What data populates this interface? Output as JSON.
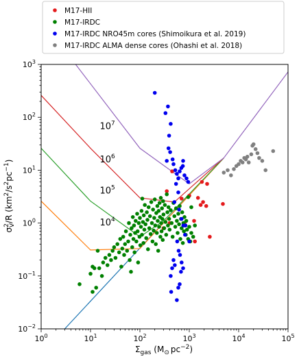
{
  "chart_data": {
    "type": "scatter",
    "xscale": "log",
    "yscale": "log",
    "xlim": [
      1,
      100000
    ],
    "ylim": [
      0.01,
      1000
    ],
    "xlabel": {
      "main": "Σ",
      "sub": "gas",
      "rest": " (M",
      "sun_sub": "⊙",
      "unit": "pc",
      "sup": "−2",
      "close": ")"
    },
    "ylabel": {
      "pre": "σ",
      "sub": "V",
      "sup1": "2",
      "mid": "/R (km",
      "sup2": "2",
      "mid2": "/s",
      "sup3": "2",
      "mid3": "pc",
      "sup4": "−1",
      "close": ")"
    },
    "x_ticks": [
      {
        "value": 1,
        "base": "10",
        "exp": "0"
      },
      {
        "value": 10,
        "base": "10",
        "exp": "1"
      },
      {
        "value": 100,
        "base": "10",
        "exp": "2"
      },
      {
        "value": 1000,
        "base": "10",
        "exp": "3"
      },
      {
        "value": 10000,
        "base": "10",
        "exp": "4"
      },
      {
        "value": 100000,
        "base": "10",
        "exp": "5"
      }
    ],
    "y_ticks": [
      {
        "value": 0.01,
        "base": "10",
        "exp": "−2"
      },
      {
        "value": 0.1,
        "base": "10",
        "exp": "−1"
      },
      {
        "value": 1,
        "base": "10",
        "exp": "0"
      },
      {
        "value": 10,
        "base": "10",
        "exp": "1"
      },
      {
        "value": 100,
        "base": "10",
        "exp": "2"
      },
      {
        "value": 1000,
        "base": "10",
        "exp": "3"
      }
    ],
    "legend": {
      "placement": "top",
      "entries": [
        {
          "label": "M17-HII",
          "color": "#e41a1c"
        },
        {
          "label": "M17-IRDC",
          "color": "#008000"
        },
        {
          "label": "M17-IRDC NRO45m cores (Shimoikura et al. 2019)",
          "color": "#0000ee"
        },
        {
          "label": "M17-IRDC ALMA dense cores (Ohashi et al. 2018)",
          "color": "#808080"
        }
      ]
    },
    "lines": [
      {
        "color": "#1f77b4",
        "points": [
          [
            3,
            0.01
          ],
          [
            5000,
            17
          ]
        ]
      },
      {
        "color": "#ff7f0e",
        "label": {
          "base": "10",
          "exp": "4"
        },
        "label_at": [
          22,
          0.9
        ],
        "points": [
          [
            1,
            2.6
          ],
          [
            10,
            0.31
          ],
          [
            100,
            0.33
          ],
          [
            5000,
            17
          ]
        ]
      },
      {
        "color": "#2ca02c",
        "label": {
          "base": "10",
          "exp": "5"
        },
        "label_at": [
          22,
          3.6
        ],
        "points": [
          [
            1,
            26
          ],
          [
            10,
            2.6
          ],
          [
            100,
            0.55
          ],
          [
            300,
            1.1
          ],
          [
            5000,
            17
          ]
        ]
      },
      {
        "color": "#d62728",
        "label": {
          "base": "10",
          "exp": "6"
        },
        "label_at": [
          22,
          14
        ],
        "points": [
          [
            1,
            260
          ],
          [
            10,
            26
          ],
          [
            100,
            3.0
          ],
          [
            500,
            2.5
          ],
          [
            5000,
            17
          ]
        ]
      },
      {
        "color": "#9467bd",
        "label": {
          "base": "10",
          "exp": "7"
        },
        "label_at": [
          22,
          60
        ],
        "points": [
          [
            5,
            1000
          ],
          [
            100,
            26
          ],
          [
            1000,
            5.5
          ],
          [
            5000,
            17
          ],
          [
            100000,
            720
          ]
        ]
      }
    ],
    "series": [
      {
        "name": "M17-HII",
        "color": "#e41a1c",
        "points": [
          [
            350,
            4.0
          ],
          [
            450,
            9.5
          ],
          [
            1800,
            6.0
          ],
          [
            1900,
            2.5
          ],
          [
            2300,
            5.5
          ],
          [
            1500,
            3.0
          ],
          [
            1700,
            2.2
          ],
          [
            1250,
            1.1
          ],
          [
            1300,
            0.45
          ],
          [
            800,
            1.0
          ],
          [
            2200,
            2.1
          ],
          [
            4800,
            2.3
          ],
          [
            2600,
            0.55
          ],
          [
            400,
            1.0
          ],
          [
            300,
            0.8
          ],
          [
            700,
            2.9
          ],
          [
            1000,
            3.3
          ]
        ]
      },
      {
        "name": "M17-IRDC",
        "color": "#008000",
        "points": [
          [
            6,
            0.07
          ],
          [
            10,
            0.11
          ],
          [
            11,
            0.15
          ],
          [
            12,
            0.14
          ],
          [
            11,
            0.05
          ],
          [
            13,
            0.06
          ],
          [
            15,
            0.14
          ],
          [
            14,
            0.3
          ],
          [
            17,
            0.1
          ],
          [
            18,
            0.18
          ],
          [
            20,
            0.22
          ],
          [
            22,
            0.16
          ],
          [
            24,
            0.25
          ],
          [
            26,
            0.2
          ],
          [
            28,
            0.3
          ],
          [
            30,
            0.35
          ],
          [
            32,
            0.22
          ],
          [
            35,
            0.4
          ],
          [
            38,
            0.28
          ],
          [
            40,
            0.5
          ],
          [
            42,
            0.15
          ],
          [
            44,
            0.33
          ],
          [
            46,
            0.55
          ],
          [
            48,
            0.25
          ],
          [
            50,
            0.4
          ],
          [
            52,
            0.7
          ],
          [
            55,
            0.3
          ],
          [
            58,
            0.45
          ],
          [
            60,
            1.0
          ],
          [
            62,
            0.2
          ],
          [
            64,
            0.6
          ],
          [
            66,
            0.12
          ],
          [
            68,
            0.8
          ],
          [
            70,
            0.35
          ],
          [
            72,
            1.3
          ],
          [
            74,
            0.5
          ],
          [
            76,
            0.9
          ],
          [
            78,
            0.28
          ],
          [
            80,
            0.65
          ],
          [
            82,
            1.1
          ],
          [
            85,
            0.45
          ],
          [
            88,
            1.5
          ],
          [
            90,
            0.7
          ],
          [
            92,
            0.18
          ],
          [
            95,
            1.0
          ],
          [
            98,
            0.55
          ],
          [
            100,
            1.25
          ],
          [
            102,
            0.38
          ],
          [
            105,
            0.85
          ],
          [
            108,
            1.7
          ],
          [
            110,
            0.6
          ],
          [
            112,
            2.9
          ],
          [
            115,
            1.05
          ],
          [
            118,
            0.42
          ],
          [
            120,
            1.4
          ],
          [
            123,
            0.75
          ],
          [
            126,
            2.2
          ],
          [
            130,
            0.95
          ],
          [
            134,
            0.52
          ],
          [
            138,
            1.6
          ],
          [
            142,
            1.15
          ],
          [
            146,
            0.32
          ],
          [
            150,
            2.0
          ],
          [
            155,
            0.8
          ],
          [
            160,
            1.35
          ],
          [
            165,
            0.62
          ],
          [
            170,
            2.5
          ],
          [
            175,
            1.0
          ],
          [
            180,
            0.45
          ],
          [
            185,
            1.8
          ],
          [
            190,
            0.72
          ],
          [
            195,
            1.25
          ],
          [
            200,
            2.8
          ],
          [
            205,
            0.9
          ],
          [
            210,
            0.4
          ],
          [
            215,
            1.55
          ],
          [
            220,
            0.65
          ],
          [
            225,
            2.1
          ],
          [
            230,
            1.1
          ],
          [
            235,
            0.3
          ],
          [
            240,
            1.7
          ],
          [
            245,
            0.85
          ],
          [
            250,
            2.4
          ],
          [
            255,
            1.3
          ],
          [
            260,
            0.55
          ],
          [
            265,
            3.0
          ],
          [
            270,
            1.0
          ],
          [
            275,
            0.7
          ],
          [
            280,
            1.9
          ],
          [
            285,
            1.2
          ],
          [
            290,
            0.48
          ],
          [
            295,
            2.6
          ],
          [
            300,
            1.45
          ],
          [
            310,
            0.8
          ],
          [
            320,
            2.2
          ],
          [
            330,
            1.05
          ],
          [
            340,
            0.6
          ],
          [
            350,
            3.5
          ],
          [
            360,
            1.6
          ],
          [
            370,
            0.9
          ],
          [
            380,
            2.0
          ],
          [
            390,
            1.2
          ],
          [
            400,
            0.75
          ],
          [
            420,
            1.75
          ],
          [
            440,
            1.0
          ],
          [
            460,
            0.55
          ],
          [
            480,
            2.4
          ],
          [
            500,
            1.35
          ],
          [
            520,
            0.85
          ],
          [
            540,
            1.9
          ],
          [
            560,
            1.1
          ],
          [
            580,
            0.65
          ],
          [
            600,
            1.5
          ],
          [
            620,
            0.95
          ],
          [
            640,
            2.1
          ],
          [
            660,
            0.5
          ],
          [
            680,
            1.2
          ],
          [
            700,
            0.8
          ],
          [
            720,
            1.6
          ],
          [
            740,
            0.42
          ],
          [
            760,
            1.0
          ],
          [
            780,
            0.7
          ],
          [
            800,
            1.3
          ],
          [
            820,
            0.9
          ],
          [
            850,
            0.6
          ],
          [
            870,
            1.1
          ],
          [
            900,
            0.75
          ],
          [
            950,
            0.5
          ],
          [
            1000,
            0.85
          ],
          [
            1050,
            0.45
          ],
          [
            1100,
            0.65
          ],
          [
            1200,
            0.55
          ],
          [
            1300,
            0.9
          ],
          [
            1100,
            2.0
          ],
          [
            950,
            3.1
          ]
        ]
      },
      {
        "name": "M17-IRDC NRO45m cores (Shimoikura et al. 2019)",
        "color": "#0000ee",
        "points": [
          [
            200,
            290
          ],
          [
            330,
            120
          ],
          [
            370,
            160
          ],
          [
            390,
            45
          ],
          [
            420,
            75
          ],
          [
            380,
            26
          ],
          [
            410,
            22
          ],
          [
            460,
            16
          ],
          [
            480,
            13
          ],
          [
            520,
            10
          ],
          [
            560,
            8.5
          ],
          [
            600,
            7.0
          ],
          [
            640,
            9.5
          ],
          [
            690,
            11
          ],
          [
            740,
            12
          ],
          [
            800,
            8.0
          ],
          [
            880,
            7.0
          ],
          [
            950,
            6.0
          ],
          [
            540,
            5.5
          ],
          [
            600,
            3.8
          ],
          [
            500,
            2.5
          ],
          [
            620,
            1.8
          ],
          [
            700,
            1.2
          ],
          [
            760,
            0.9
          ],
          [
            820,
            0.6
          ],
          [
            570,
            0.45
          ],
          [
            610,
            0.3
          ],
          [
            650,
            0.25
          ],
          [
            700,
            0.18
          ],
          [
            750,
            0.14
          ],
          [
            680,
            0.12
          ],
          [
            640,
            0.07
          ],
          [
            600,
            0.06
          ],
          [
            560,
            0.035
          ],
          [
            430,
            0.05
          ],
          [
            420,
            0.1
          ],
          [
            450,
            0.14
          ],
          [
            480,
            0.2
          ],
          [
            510,
            0.16
          ],
          [
            840,
            0.9
          ],
          [
            1000,
            0.45
          ],
          [
            350,
            15
          ],
          [
            750,
            15
          ]
        ]
      },
      {
        "name": "M17-IRDC ALMA dense cores (Ohashi et al. 2018)",
        "color": "#808080",
        "points": [
          [
            5000,
            9.0
          ],
          [
            6000,
            10
          ],
          [
            7000,
            8.0
          ],
          [
            8000,
            10.5
          ],
          [
            9000,
            12
          ],
          [
            10000,
            13
          ],
          [
            11000,
            15
          ],
          [
            12000,
            14
          ],
          [
            13000,
            17
          ],
          [
            14000,
            16
          ],
          [
            15000,
            18
          ],
          [
            16000,
            14
          ],
          [
            18000,
            20
          ],
          [
            19000,
            29
          ],
          [
            20000,
            31
          ],
          [
            22000,
            25
          ],
          [
            24000,
            21
          ],
          [
            26000,
            17
          ],
          [
            30000,
            15
          ],
          [
            35000,
            10
          ],
          [
            50000,
            23
          ]
        ]
      }
    ]
  }
}
